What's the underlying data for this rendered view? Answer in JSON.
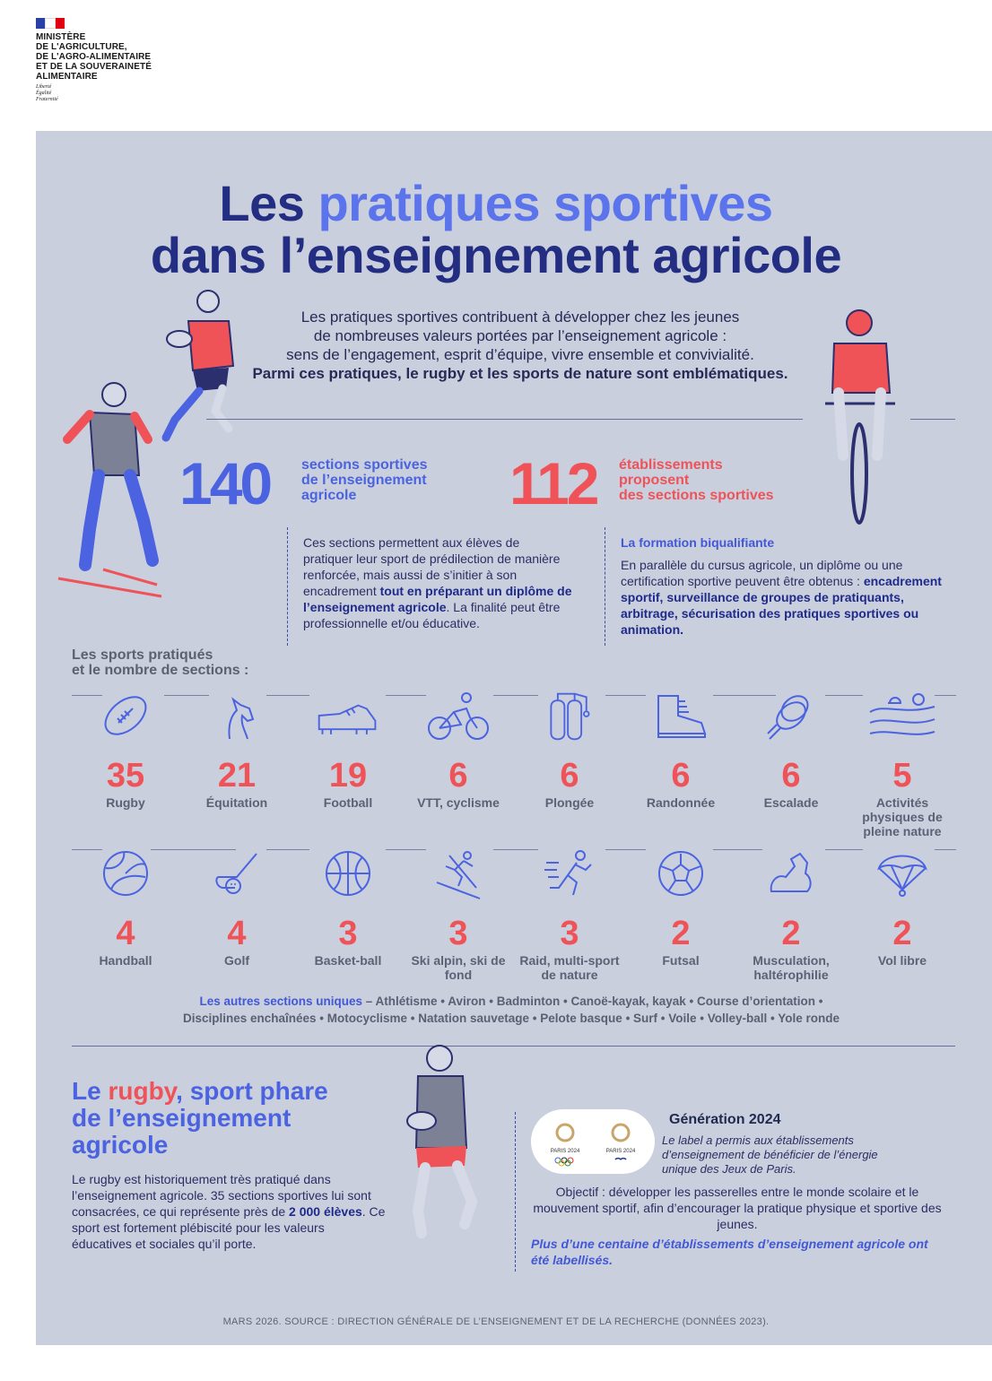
{
  "ministry": {
    "lines": [
      "MINISTÈRE",
      "DE L'AGRICULTURE,",
      "DE L'AGRO-ALIMENTAIRE",
      "ET DE LA SOUVERAINETÉ",
      "ALIMENTAIRE"
    ],
    "motto": [
      "Liberté",
      "Égalité",
      "Fraternité"
    ]
  },
  "title": {
    "line1_a": "Les ",
    "line1_b": "pratiques sportives",
    "line2": "dans l’enseignement agricole"
  },
  "intro": {
    "l1": "Les pratiques sportives contribuent à développer chez les jeunes",
    "l2": "de nombreuses valeurs portées par l’enseignement agricole :",
    "l3": "sens de l’engagement, esprit d’équipe, vivre ensemble et convivialité.",
    "l4": "Parmi ces pratiques, le rugby et les sports de nature sont emblématiques."
  },
  "stat1": {
    "number": "140",
    "label_lines": [
      "sections sportives",
      "de l’enseignement",
      "agricole"
    ],
    "para_plain1": "Ces sections permettent aux élèves de pratiquer leur sport de prédilection de manière renforcée, mais aussi de s’initier à son encadrement ",
    "para_bold": "tout en préparant un diplôme de l’enseignement agricole",
    "para_plain2": ". La finalité peut être professionnelle et/ou éducative."
  },
  "stat2": {
    "number": "112",
    "label_lines": [
      "établissements",
      "proposent",
      "des sections sportives"
    ],
    "heading": "La formation biqualifiante",
    "para_plain": "En parallèle du cursus agricole, un diplôme ou une certification sportive peuvent être obtenus : ",
    "para_bold": "encadrement sportif, surveillance de groupes de pratiquants, arbitrage, sécurisation des pratiques sportives ou animation."
  },
  "sports_heading": [
    "Les sports pratiqués",
    "et le nombre de sections :"
  ],
  "sports_row1": [
    {
      "icon": "rugby-ball-icon",
      "value": "35",
      "label": "Rugby"
    },
    {
      "icon": "horse-icon",
      "value": "21",
      "label": "Équitation"
    },
    {
      "icon": "football-boot-icon",
      "value": "19",
      "label": "Football"
    },
    {
      "icon": "cyclist-icon",
      "value": "6",
      "label": "VTT, cyclisme"
    },
    {
      "icon": "diving-tanks-icon",
      "value": "6",
      "label": "Plongée"
    },
    {
      "icon": "hiking-boot-icon",
      "value": "6",
      "label": "Randonnée"
    },
    {
      "icon": "rope-icon",
      "value": "6",
      "label": "Escalade"
    },
    {
      "icon": "landscape-icon",
      "value": "5",
      "label": "Activités physiques de pleine nature"
    }
  ],
  "sports_row2": [
    {
      "icon": "handball-icon",
      "value": "4",
      "label": "Handball"
    },
    {
      "icon": "golf-icon",
      "value": "4",
      "label": "Golf"
    },
    {
      "icon": "basketball-icon",
      "value": "3",
      "label": "Basket-ball"
    },
    {
      "icon": "skier-icon",
      "value": "3",
      "label": "Ski alpin, ski de fond"
    },
    {
      "icon": "runner-icon",
      "value": "3",
      "label": "Raid, multi-sport de nature"
    },
    {
      "icon": "soccer-ball-icon",
      "value": "2",
      "label": "Futsal"
    },
    {
      "icon": "muscle-arm-icon",
      "value": "2",
      "label": "Musculation, haltérophilie"
    },
    {
      "icon": "paraglider-icon",
      "value": "2",
      "label": "Vol libre"
    }
  ],
  "others": {
    "lead": "Les autres sections uniques",
    "line1": " – Athlétisme • Aviron • Badminton • Canoë-kayak, kayak • Course d’orientation •",
    "line2": "Disciplines enchaînées • Motocyclisme • Natation sauvetage • Pelote basque • Surf • Voile • Volley-ball • Yole ronde"
  },
  "rugby": {
    "title_a": "Le ",
    "title_red": "rugby",
    "title_b": ", sport phare",
    "title_l2": "de l’enseignement",
    "title_l3": "agricole",
    "text_plain1": "Le rugby est historiquement très pratiqué dans l’enseignement agricole. 35 sections sportives lui sont consacrées, ce qui représente près de ",
    "text_bold": "2 000 élèves",
    "text_plain2": ". Ce sport est fortement plébiscité pour les valeurs éducatives et sociales qu’il porte."
  },
  "generation": {
    "title": "Génération 2024",
    "text": "Le label a permis aux établissements d’enseignement de bénéficier de l’énergie unique des Jeux de Paris.",
    "objective": "Objectif : développer les passerelles entre le monde scolaire et le mouvement sportif, afin d’encourager la pratique physique et sportive des jeunes.",
    "strong": "Plus d’une centaine d’établissements d’enseignement agricole ont été labellisés.",
    "logo1": "PARIS 2024",
    "logo2": "PARIS 2024"
  },
  "source": "MARS 2026. SOURCE : DIRECTION GÉNÉRALE DE L’ENSEIGNEMENT ET DE LA RECHERCHE (DONNÉES 2023).",
  "colors": {
    "navy": "#232d82",
    "blue": "#5b74ec",
    "red": "#ef5358",
    "panel": "#c9cfdd"
  }
}
